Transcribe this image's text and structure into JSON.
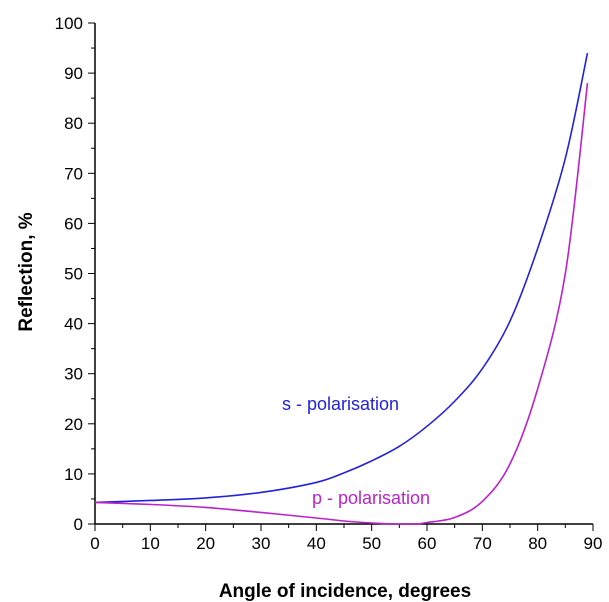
{
  "chart_data": {
    "type": "line",
    "xlabel": "Angle of incidence, degrees",
    "ylabel": "Reflection, %",
    "xlim": [
      0,
      90
    ],
    "ylim": [
      0,
      100
    ],
    "xticks": [
      0,
      10,
      20,
      30,
      40,
      50,
      60,
      70,
      80,
      90
    ],
    "yticks": [
      0,
      10,
      20,
      30,
      40,
      50,
      60,
      70,
      80,
      90,
      100
    ],
    "grid": false,
    "series": [
      {
        "name": "s - polarisation",
        "color": "#2222dd",
        "x": [
          0,
          10,
          20,
          30,
          40,
          45,
          50,
          55,
          60,
          65,
          70,
          75,
          80,
          85,
          89
        ],
        "y": [
          4.3,
          4.7,
          5.2,
          6.3,
          8.3,
          10.2,
          12.6,
          15.5,
          19.5,
          24.5,
          31,
          40.5,
          55,
          73,
          94
        ]
      },
      {
        "name": "p - polarisation",
        "color": "#bb22cc",
        "x": [
          0,
          10,
          20,
          30,
          40,
          45,
          50,
          54,
          58,
          60,
          65,
          70,
          75,
          80,
          85,
          89
        ],
        "y": [
          4.3,
          3.9,
          3.3,
          2.3,
          1.2,
          0.6,
          0.2,
          0.0,
          0.0,
          0.3,
          1.3,
          4.5,
          12,
          27,
          50,
          88
        ]
      }
    ]
  }
}
